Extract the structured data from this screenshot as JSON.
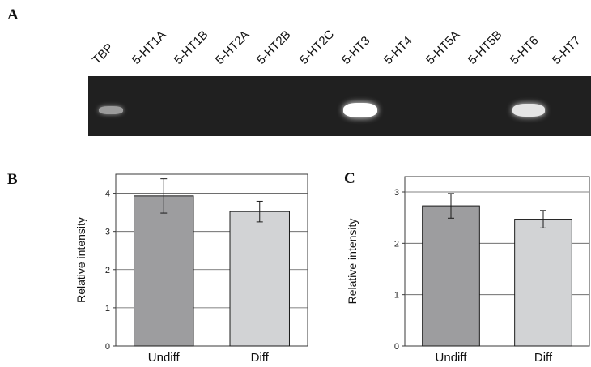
{
  "panels": {
    "a": "A",
    "b": "B",
    "c": "C"
  },
  "gel": {
    "lanes": [
      "TBP",
      "5-HT1A",
      "5-HT1B",
      "5-HT2A",
      "5-HT2B",
      "5-HT2C",
      "5-HT3",
      "5-HT4",
      "5-HT5A",
      "5-HT5B",
      "5-HT6",
      "5-HT7"
    ],
    "bands": [
      {
        "lane": "TBP",
        "intensity": 0.55,
        "color": "#cfcfcf"
      },
      {
        "lane": "5-HT3",
        "intensity": 1.0,
        "color": "#ffffff"
      },
      {
        "lane": "5-HT6",
        "intensity": 0.9,
        "color": "#f4f4f4"
      }
    ],
    "background": "#202020"
  },
  "chart_data": [
    {
      "type": "bar",
      "panel": "B",
      "categories": [
        "Undiff",
        "Diff"
      ],
      "values": [
        3.93,
        3.52
      ],
      "errors": [
        0.45,
        0.27
      ],
      "colors": [
        "#9d9d9f",
        "#d2d3d5"
      ],
      "title": "",
      "xlabel": "",
      "ylabel": "Relative intensity",
      "ylim": [
        0,
        4.5
      ],
      "yticks": [
        0,
        1,
        2,
        3,
        4
      ],
      "grid": true
    },
    {
      "type": "bar",
      "panel": "C",
      "categories": [
        "Undiff",
        "Diff"
      ],
      "values": [
        2.73,
        2.47
      ],
      "errors": [
        0.24,
        0.17
      ],
      "colors": [
        "#9d9d9f",
        "#d2d3d5"
      ],
      "title": "",
      "xlabel": "",
      "ylabel": "Relative intensity",
      "ylim": [
        0,
        3.3
      ],
      "yticks": [
        0,
        1,
        2,
        3
      ],
      "grid": true
    }
  ]
}
